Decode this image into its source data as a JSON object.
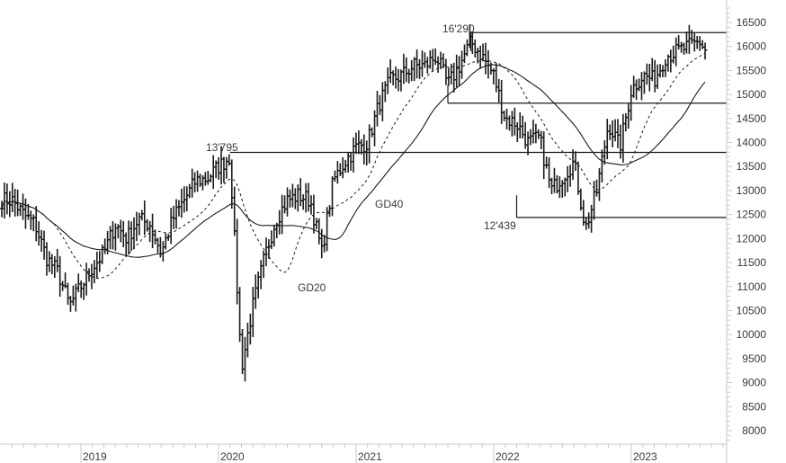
{
  "chart_data": {
    "type": "ohlc",
    "title": "",
    "xlabel": "",
    "ylabel": "",
    "frequency": "weekly",
    "ylim": [
      7800,
      16800
    ],
    "y_ticks": [
      8000,
      8500,
      9000,
      9500,
      10000,
      10500,
      11000,
      11500,
      12000,
      12500,
      13000,
      13500,
      14000,
      14500,
      15000,
      15500,
      16000,
      16500
    ],
    "x_ticks": [
      "2019",
      "2020",
      "2021",
      "2022",
      "2023"
    ],
    "grid": false,
    "legend": null,
    "horizontal_levels": [
      {
        "value": 16290,
        "label": "16'290",
        "from": "2021-11",
        "to": "end"
      },
      {
        "value": 14820,
        "label": "",
        "from": "2021-09",
        "to": "end"
      },
      {
        "value": 13795,
        "label": "13'795",
        "from": "2020-02",
        "to": "end"
      },
      {
        "value": 12439,
        "label": "12'439",
        "from": "2022-03",
        "to": "end"
      }
    ],
    "series": [
      {
        "name": "Price (weekly OHLC bars)",
        "style": "bars"
      },
      {
        "name": "GD20",
        "style": "dashed",
        "description": "20-week moving average"
      },
      {
        "name": "GD40",
        "style": "solid",
        "description": "40-week moving average"
      }
    ],
    "annotations": [
      {
        "text": "16'290",
        "at": "2021-11 high"
      },
      {
        "text": "13'795",
        "at": "2020-02 high"
      },
      {
        "text": "12'439",
        "at": "2022-03 low"
      },
      {
        "text": "GD20",
        "at": "2020-05"
      },
      {
        "text": "GD40",
        "at": "2021-01"
      }
    ],
    "closes_weekly_anchor": [
      [
        "2018-07",
        12800
      ],
      [
        "2018-08",
        12500
      ],
      [
        "2018-09",
        12300
      ],
      [
        "2018-10",
        11600
      ],
      [
        "2018-11",
        11300
      ],
      [
        "2018-12",
        10600
      ],
      [
        "2019-01",
        11000
      ],
      [
        "2019-02",
        11400
      ],
      [
        "2019-03",
        11700
      ],
      [
        "2019-04",
        12300
      ],
      [
        "2019-05",
        12000
      ],
      [
        "2019-06",
        12400
      ],
      [
        "2019-07",
        12300
      ],
      [
        "2019-08",
        11700
      ],
      [
        "2019-09",
        12400
      ],
      [
        "2019-10",
        12800
      ],
      [
        "2019-11",
        13200
      ],
      [
        "2019-12",
        13250
      ],
      [
        "2020-01",
        13500
      ],
      [
        "2020-02",
        13700
      ],
      [
        "2020-03",
        9300
      ],
      [
        "2020-04",
        10600
      ],
      [
        "2020-05",
        11600
      ],
      [
        "2020-06",
        12400
      ],
      [
        "2020-07",
        12800
      ],
      [
        "2020-08",
        12900
      ],
      [
        "2020-09",
        12800
      ],
      [
        "2020-10",
        11700
      ],
      [
        "2020-11",
        13200
      ],
      [
        "2020-12",
        13600
      ],
      [
        "2021-01",
        13900
      ],
      [
        "2021-02",
        14000
      ],
      [
        "2021-03",
        14800
      ],
      [
        "2021-04",
        15300
      ],
      [
        "2021-05",
        15400
      ],
      [
        "2021-06",
        15600
      ],
      [
        "2021-07",
        15600
      ],
      [
        "2021-08",
        15800
      ],
      [
        "2021-09",
        15200
      ],
      [
        "2021-10",
        15600
      ],
      [
        "2021-11",
        16100
      ],
      [
        "2021-12",
        15800
      ],
      [
        "2022-01",
        15400
      ],
      [
        "2022-02",
        14500
      ],
      [
        "2022-03",
        14400
      ],
      [
        "2022-04",
        14000
      ],
      [
        "2022-05",
        14100
      ],
      [
        "2022-06",
        13000
      ],
      [
        "2022-07",
        13300
      ],
      [
        "2022-08",
        13600
      ],
      [
        "2022-09",
        12200
      ],
      [
        "2022-10",
        13000
      ],
      [
        "2022-11",
        14400
      ],
      [
        "2022-12",
        13900
      ],
      [
        "2023-01",
        15100
      ],
      [
        "2023-02",
        15400
      ],
      [
        "2023-03",
        15300
      ],
      [
        "2023-04",
        15800
      ],
      [
        "2023-05",
        15900
      ],
      [
        "2023-06",
        16000
      ],
      [
        "2023-07",
        16100
      ],
      [
        "2023-08",
        15700
      ]
    ]
  }
}
